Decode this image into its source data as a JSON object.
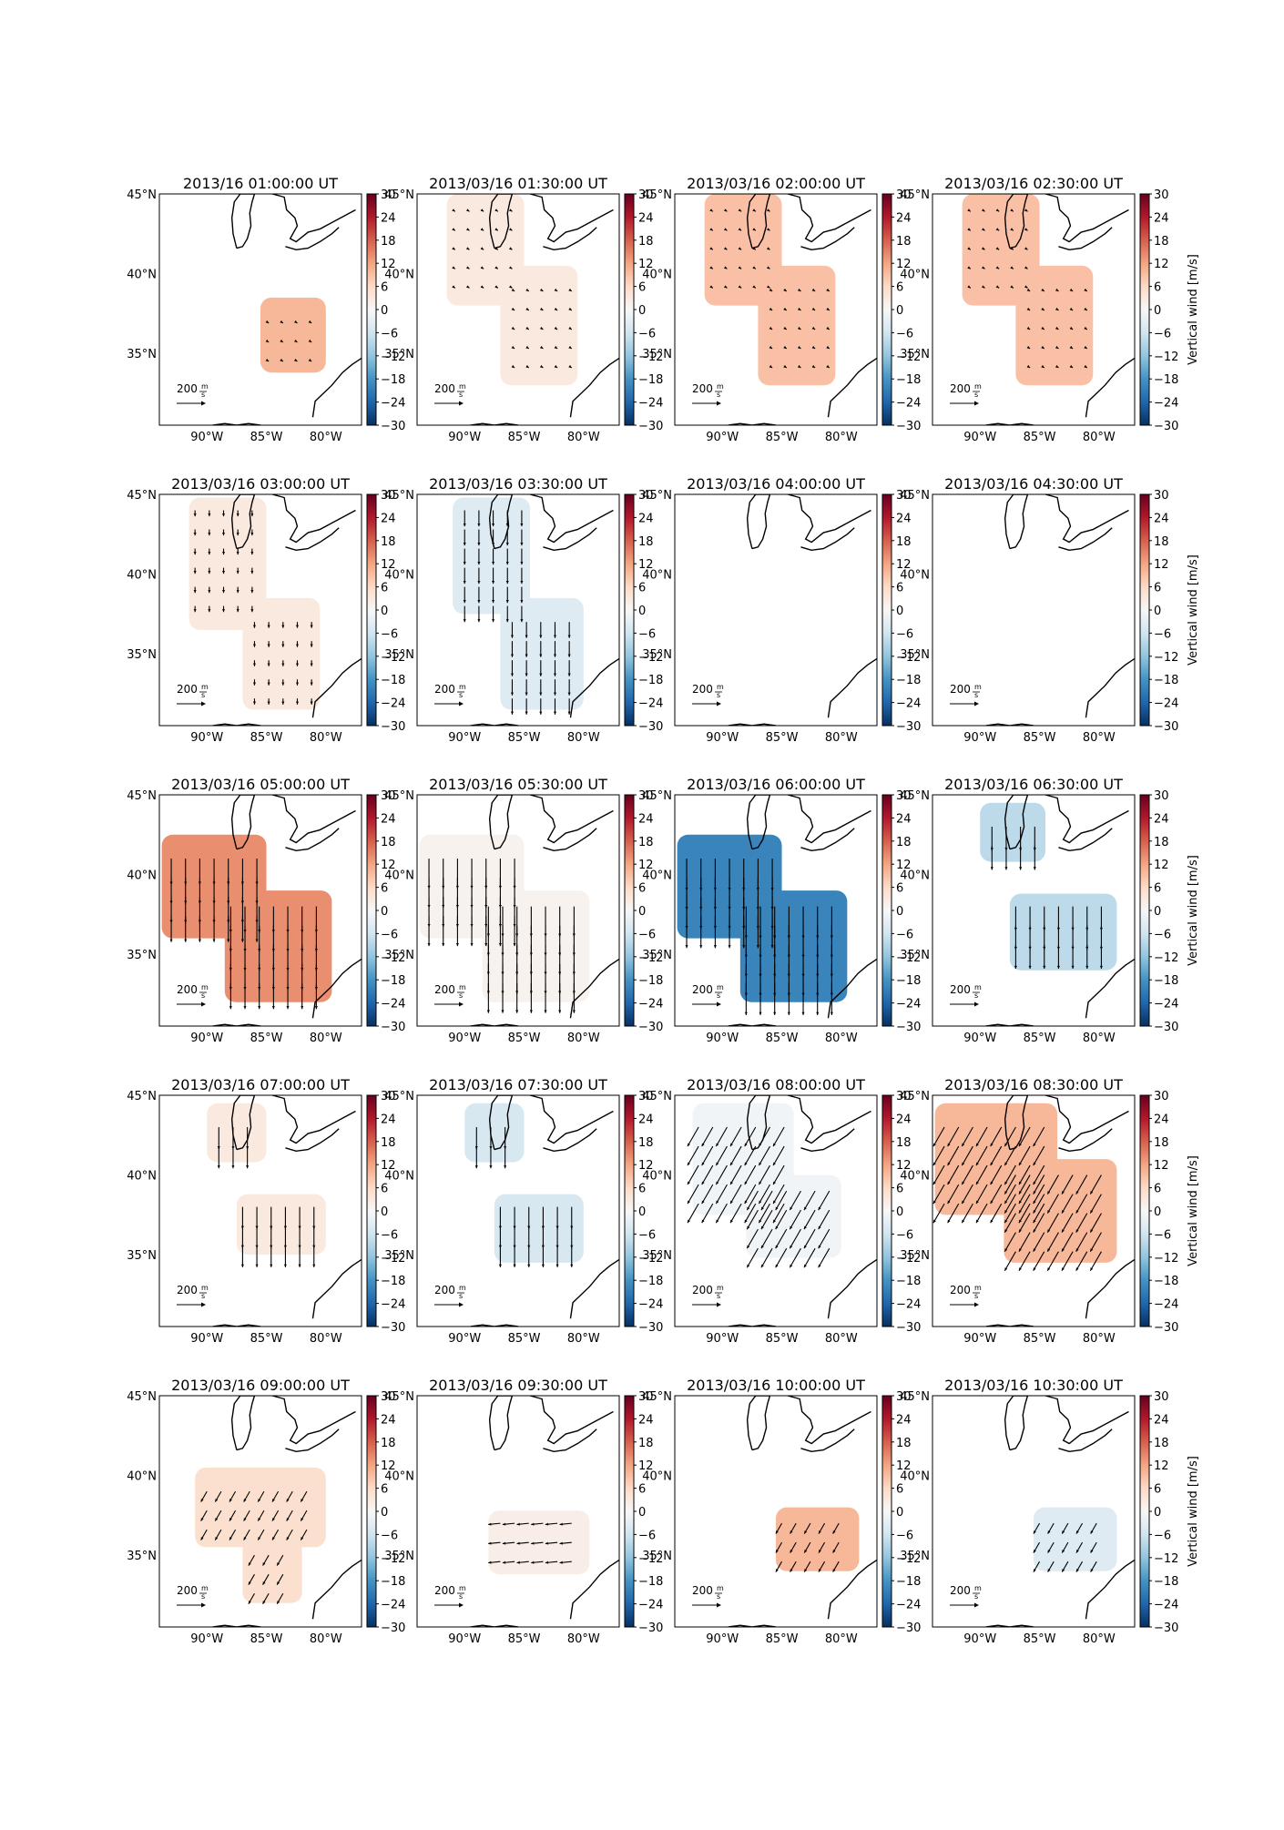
{
  "figure": {
    "colorbar_label": "Vertical wind [m/s]",
    "colorbar_ticks": [
      30,
      24,
      18,
      12,
      6,
      0,
      -6,
      -12,
      -18,
      -24,
      -30
    ],
    "colorbar_ticks_clipped": [
      "30",
      "24",
      "18",
      "12",
      "6",
      "0",
      "−6",
      "−12",
      "−18",
      "−24",
      "−30"
    ],
    "colormap_stops": [
      "#053061",
      "#2166ac",
      "#4393c3",
      "#92c5de",
      "#d1e5f0",
      "#f7f7f7",
      "#fddbc7",
      "#f4a582",
      "#d6604d",
      "#b2182b",
      "#67001f"
    ],
    "lat_labels": [
      "45°N",
      "40°N",
      "35°N"
    ],
    "lat_values": [
      45,
      40,
      35
    ],
    "lon_labels": [
      "90°W",
      "85°W",
      "80°W"
    ],
    "lon_values": [
      -90,
      -85,
      -80
    ],
    "quiver_key": {
      "value": "200",
      "unit_num": "m",
      "unit_den": "s"
    },
    "coastline_color": "#000000",
    "extent": {
      "lon": [
        -94,
        -77
      ],
      "lat": [
        30.5,
        45
      ]
    }
  },
  "chart_data": [
    {
      "type": "heatmap",
      "title": "2013/16 01:00:00 UT",
      "vertical_wind_ms": 10,
      "arrow_dir": "none",
      "arrow_len": 0.2,
      "regions": [
        {
          "lon": [
            -85.5,
            -80.0
          ],
          "lat": [
            33.8,
            38.5
          ]
        }
      ]
    },
    {
      "type": "heatmap",
      "title": "2013/03/16 01:30:00 UT",
      "vertical_wind_ms": 3,
      "arrow_dir": "none",
      "arrow_len": 0.2,
      "regions": [
        {
          "lon": [
            -91.5,
            -85.0
          ],
          "lat": [
            38.0,
            45.0
          ]
        },
        {
          "lon": [
            -87.0,
            -80.5
          ],
          "lat": [
            33.0,
            40.5
          ]
        }
      ]
    },
    {
      "type": "heatmap",
      "title": "2013/03/16 02:00:00 UT",
      "vertical_wind_ms": 9,
      "arrow_dir": "none",
      "arrow_len": 0.2,
      "regions": [
        {
          "lon": [
            -91.5,
            -85.0
          ],
          "lat": [
            38.0,
            45.0
          ]
        },
        {
          "lon": [
            -87.0,
            -80.5
          ],
          "lat": [
            33.0,
            40.5
          ]
        }
      ]
    },
    {
      "type": "heatmap",
      "title": "2013/03/16 02:30:00 UT",
      "vertical_wind_ms": 9,
      "arrow_dir": "none",
      "arrow_len": 0.2,
      "regions": [
        {
          "lon": [
            -91.5,
            -85.0
          ],
          "lat": [
            38.0,
            45.0
          ]
        },
        {
          "lon": [
            -87.0,
            -80.5
          ],
          "lat": [
            33.0,
            40.5
          ]
        }
      ]
    },
    {
      "type": "heatmap",
      "title": "2013/03/16 03:00:00 UT",
      "vertical_wind_ms": 3,
      "arrow_dir": "south",
      "arrow_len": 0.3,
      "regions": [
        {
          "lon": [
            -91.5,
            -85.0
          ],
          "lat": [
            36.5,
            44.8
          ]
        },
        {
          "lon": [
            -87.0,
            -80.5
          ],
          "lat": [
            31.5,
            38.5
          ]
        }
      ]
    },
    {
      "type": "heatmap",
      "title": "2013/03/16 03:30:00 UT",
      "vertical_wind_ms": -4,
      "arrow_dir": "south",
      "arrow_len": 0.8,
      "regions": [
        {
          "lon": [
            -91.0,
            -84.5
          ],
          "lat": [
            37.5,
            44.8
          ]
        },
        {
          "lon": [
            -87.0,
            -80.0
          ],
          "lat": [
            31.5,
            38.5
          ]
        }
      ]
    },
    {
      "type": "heatmap",
      "title": "2013/03/16 04:00:00 UT",
      "vertical_wind_ms": 0,
      "arrow_dir": "none",
      "arrow_len": 0,
      "regions": []
    },
    {
      "type": "heatmap",
      "title": "2013/03/16 04:30:00 UT",
      "vertical_wind_ms": 0,
      "arrow_dir": "none",
      "arrow_len": 0,
      "regions": []
    },
    {
      "type": "heatmap",
      "title": "2013/03/16 05:00:00 UT",
      "vertical_wind_ms": 14,
      "arrow_dir": "south",
      "arrow_len": 1.3,
      "regions": [
        {
          "lon": [
            -93.8,
            -85.0
          ],
          "lat": [
            36.0,
            42.5
          ]
        },
        {
          "lon": [
            -88.5,
            -79.5
          ],
          "lat": [
            32.0,
            39.0
          ]
        }
      ]
    },
    {
      "type": "heatmap",
      "title": "2013/03/16 05:30:00 UT",
      "vertical_wind_ms": 1,
      "arrow_dir": "south",
      "arrow_len": 1.5,
      "regions": [
        {
          "lon": [
            -93.8,
            -85.0
          ],
          "lat": [
            36.0,
            42.5
          ]
        },
        {
          "lon": [
            -88.5,
            -79.5
          ],
          "lat": [
            32.0,
            39.0
          ]
        }
      ]
    },
    {
      "type": "heatmap",
      "title": "2013/03/16 06:00:00 UT",
      "vertical_wind_ms": -20,
      "arrow_dir": "south",
      "arrow_len": 1.6,
      "regions": [
        {
          "lon": [
            -93.8,
            -85.0
          ],
          "lat": [
            36.0,
            42.5
          ]
        },
        {
          "lon": [
            -88.5,
            -79.5
          ],
          "lat": [
            32.0,
            39.0
          ]
        }
      ]
    },
    {
      "type": "heatmap",
      "title": "2013/03/16 06:30:00 UT",
      "vertical_wind_ms": -8,
      "arrow_dir": "south",
      "arrow_len": 1.2,
      "regions": [
        {
          "lon": [
            -90.0,
            -84.5
          ],
          "lat": [
            40.8,
            44.5
          ]
        },
        {
          "lon": [
            -87.5,
            -78.5
          ],
          "lat": [
            34.0,
            38.8
          ]
        }
      ]
    },
    {
      "type": "heatmap",
      "title": "2013/03/16 07:00:00 UT",
      "vertical_wind_ms": 3,
      "arrow_dir": "south",
      "arrow_len": 1.1,
      "regions": [
        {
          "lon": [
            -90.0,
            -85.0
          ],
          "lat": [
            40.8,
            44.5
          ]
        },
        {
          "lon": [
            -87.5,
            -80.0
          ],
          "lat": [
            35.0,
            38.8
          ]
        }
      ]
    },
    {
      "type": "heatmap",
      "title": "2013/03/16 07:30:00 UT",
      "vertical_wind_ms": -5,
      "arrow_dir": "south",
      "arrow_len": 1.1,
      "regions": [
        {
          "lon": [
            -90.0,
            -85.0
          ],
          "lat": [
            40.8,
            44.5
          ]
        },
        {
          "lon": [
            -87.5,
            -80.0
          ],
          "lat": [
            34.5,
            38.8
          ]
        }
      ]
    },
    {
      "type": "heatmap",
      "title": "2013/03/16 08:00:00 UT",
      "vertical_wind_ms": -1,
      "arrow_dir": "sw",
      "arrow_len": 1.1,
      "regions": [
        {
          "lon": [
            -92.5,
            -84.0
          ],
          "lat": [
            37.5,
            44.5
          ]
        },
        {
          "lon": [
            -88.0,
            -80.0
          ],
          "lat": [
            34.8,
            40.0
          ]
        }
      ]
    },
    {
      "type": "heatmap",
      "title": "2013/03/16 08:30:00 UT",
      "vertical_wind_ms": 10,
      "arrow_dir": "sw",
      "arrow_len": 1.1,
      "regions": [
        {
          "lon": [
            -93.8,
            -83.5
          ],
          "lat": [
            37.5,
            44.5
          ]
        },
        {
          "lon": [
            -88.0,
            -78.5
          ],
          "lat": [
            34.5,
            41.0
          ]
        }
      ]
    },
    {
      "type": "heatmap",
      "title": "2013/03/16 09:00:00 UT",
      "vertical_wind_ms": 5,
      "arrow_dir": "sw",
      "arrow_len": 0.6,
      "regions": [
        {
          "lon": [
            -91.0,
            -80.0
          ],
          "lat": [
            35.5,
            40.5
          ]
        },
        {
          "lon": [
            -87.0,
            -82.0
          ],
          "lat": [
            32.0,
            36.0
          ]
        }
      ]
    },
    {
      "type": "heatmap",
      "title": "2013/03/16 09:30:00 UT",
      "vertical_wind_ms": 2,
      "arrow_dir": "west",
      "arrow_len": 0.6,
      "regions": [
        {
          "lon": [
            -88.0,
            -79.5
          ],
          "lat": [
            33.8,
            37.8
          ]
        }
      ]
    },
    {
      "type": "heatmap",
      "title": "2013/03/16 10:00:00 UT",
      "vertical_wind_ms": 10,
      "arrow_dir": "sw",
      "arrow_len": 0.6,
      "regions": [
        {
          "lon": [
            -85.5,
            -78.5
          ],
          "lat": [
            34.0,
            38.0
          ]
        }
      ]
    },
    {
      "type": "heatmap",
      "title": "2013/03/16 10:30:00 UT",
      "vertical_wind_ms": -4,
      "arrow_dir": "sw",
      "arrow_len": 0.6,
      "regions": [
        {
          "lon": [
            -85.5,
            -78.5
          ],
          "lat": [
            34.0,
            38.0
          ]
        }
      ]
    }
  ]
}
